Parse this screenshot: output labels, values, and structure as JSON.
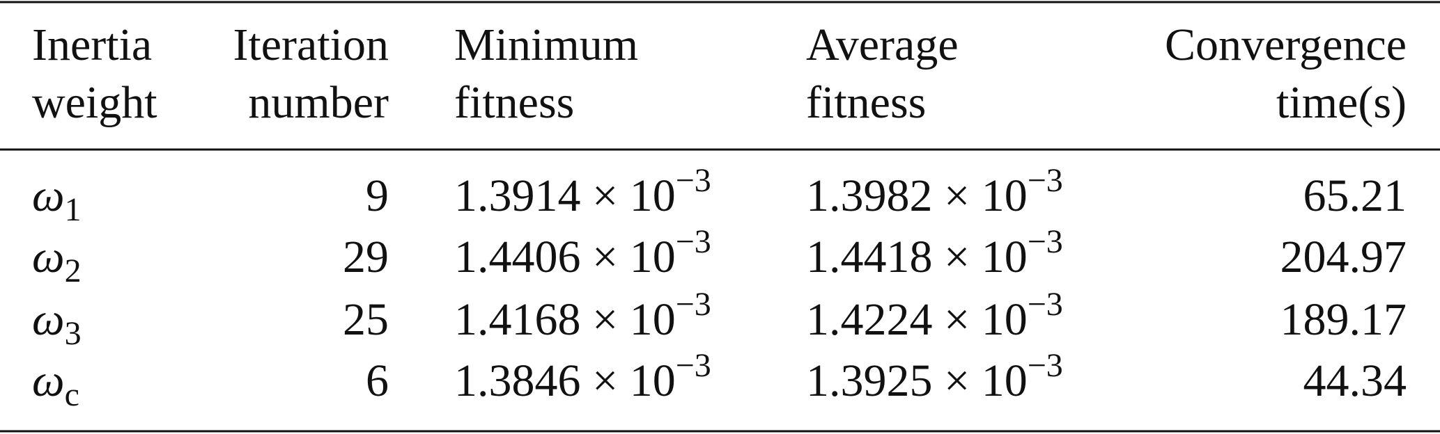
{
  "table": {
    "header": [
      [
        "Inertia",
        "weight"
      ],
      [
        "Iteration",
        "number"
      ],
      [
        "Minimum",
        "fitness"
      ],
      [
        "Average",
        "fitness"
      ],
      [
        "Convergence",
        "time(s)"
      ]
    ],
    "rows": [
      [
        {
          "symbol": "ω",
          "subscript": "1"
        },
        "9",
        {
          "base": "1.3914 × 10",
          "exponent": "−3"
        },
        {
          "base": "1.3982 × 10",
          "exponent": "−3"
        },
        "65.21"
      ],
      [
        {
          "symbol": "ω",
          "subscript": "2"
        },
        "29",
        {
          "base": "1.4406 × 10",
          "exponent": "−3"
        },
        {
          "base": "1.4418 × 10",
          "exponent": "−3"
        },
        "204.97"
      ],
      [
        {
          "symbol": "ω",
          "subscript": "3"
        },
        "25",
        {
          "base": "1.4168 × 10",
          "exponent": "−3"
        },
        {
          "base": "1.4224 × 10",
          "exponent": "−3"
        },
        "189.17"
      ],
      [
        {
          "symbol": "ω",
          "subscript": "c"
        },
        "6",
        {
          "base": "1.3846 × 10",
          "exponent": "−3"
        },
        {
          "base": "1.3925 × 10",
          "exponent": "−3"
        },
        "44.34"
      ]
    ]
  }
}
